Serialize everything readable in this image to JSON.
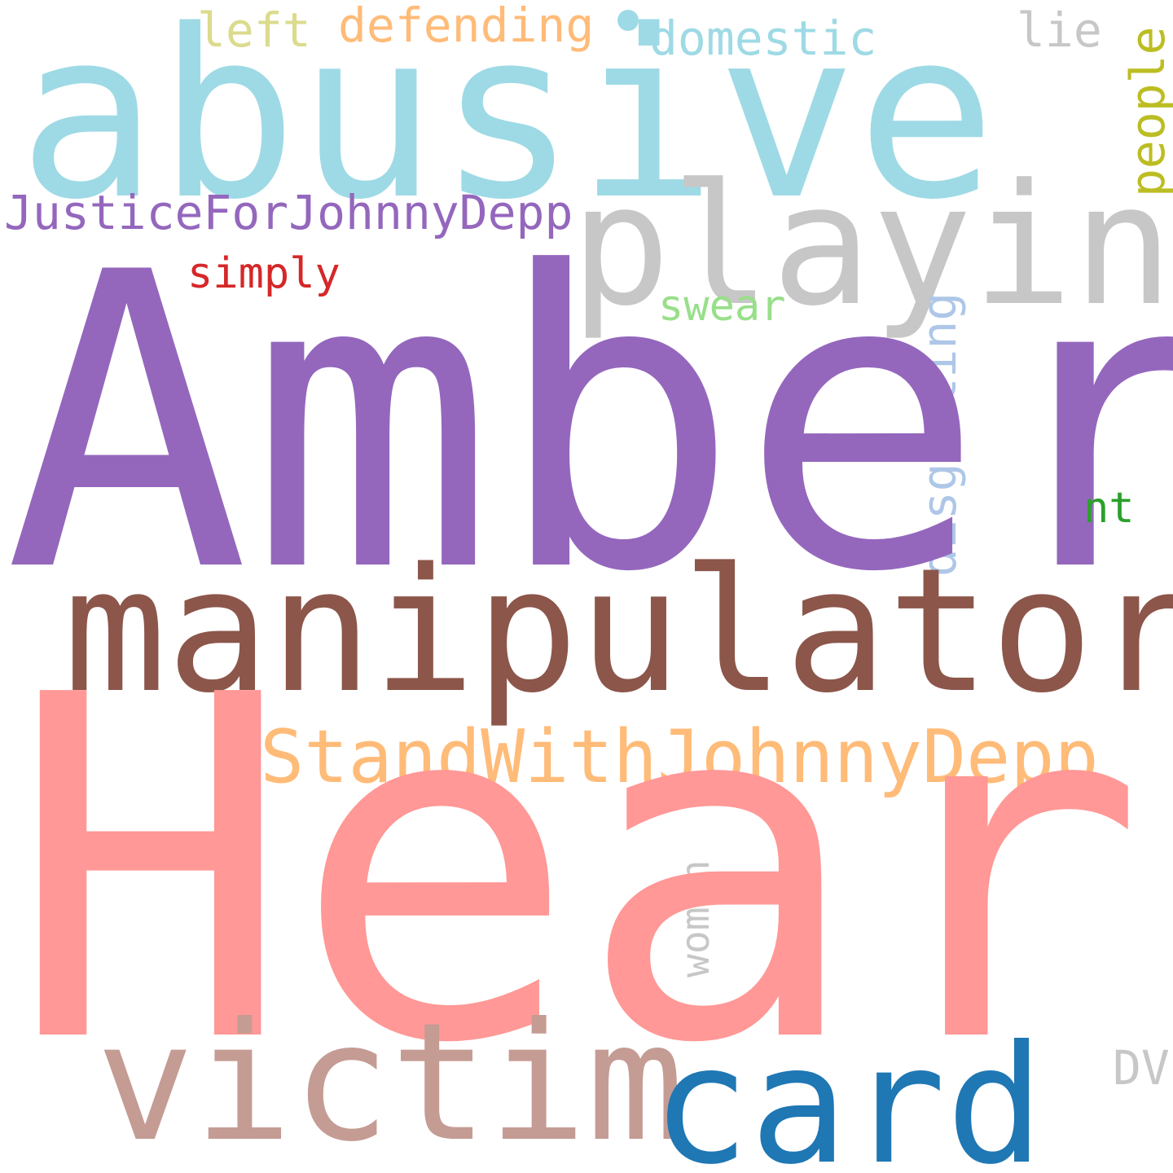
{
  "words": {
    "amber": "Amber",
    "heard": "Heard",
    "abusive": "abusive",
    "manipulator": "manipulator",
    "playing": "playing",
    "victim": "victim",
    "card": "card",
    "istand": "IStandWithJohnnyDepp",
    "justice": "JusticeForJohnnyDepp",
    "defending": "defending",
    "domestic": "domestic",
    "left": "left",
    "lie": "lie",
    "people": "people",
    "simply": "simply",
    "swear": "swear",
    "disgusting": "disgusting",
    "nt": "nt",
    "woman": "woman",
    "dv": "DV"
  },
  "colors": {
    "purple": "#9467bd",
    "pink": "#ff9896",
    "light_blue": "#9edae5",
    "brown": "#8c564b",
    "gray": "#c7c7c7",
    "rose_brown": "#c49c94",
    "blue": "#1f77b4",
    "light_orange": "#ffbb78",
    "olive_light": "#dbdb8d",
    "olive": "#bcbd22",
    "red": "#d62728",
    "light_green": "#98df8a",
    "pale_blue": "#aec7e8",
    "green": "#2ca02c"
  }
}
